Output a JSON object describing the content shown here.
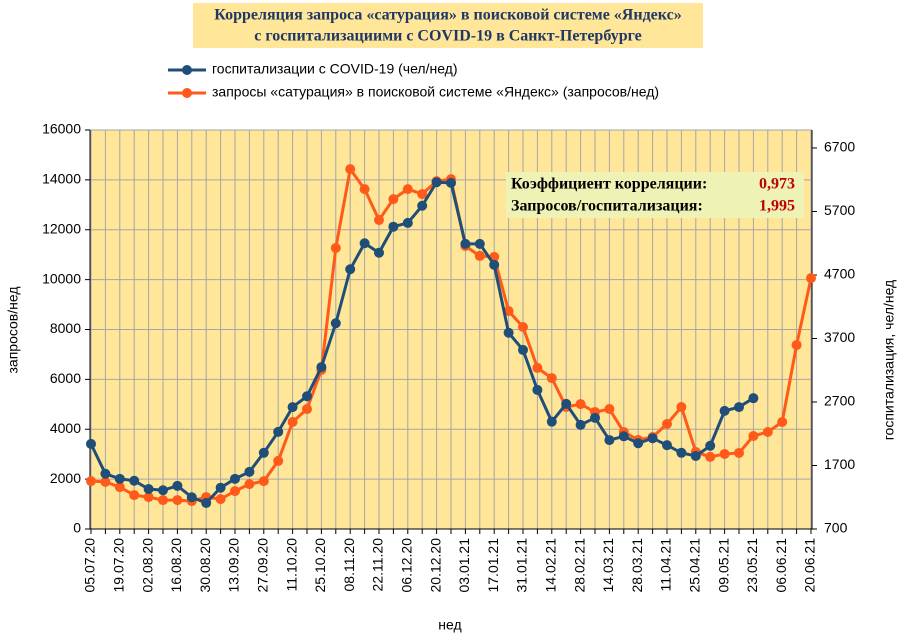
{
  "chart_data": {
    "type": "line",
    "title": [
      "Корреляция запроса «сатурация» в поисковой системе «Яндекс»",
      "с госпитализациими с COVID-19 в Санкт-Петербурге"
    ],
    "x_label": "нед",
    "y_label": "запросов/нед",
    "y2_label": "госпитализация, чел/нед",
    "categories": [
      "05.07.20",
      null,
      "19.07.20",
      null,
      "02.08.20",
      null,
      "16.08.20",
      null,
      "30.08.20",
      null,
      "13.09.20",
      null,
      "27.09.20",
      null,
      "11.10.20",
      null,
      "25.10.20",
      null,
      "08.11.20",
      null,
      "22.11.20",
      null,
      "06.12.20",
      null,
      "20.12.20",
      null,
      "03.01.21",
      null,
      "17.01.21",
      null,
      "31.01.21",
      null,
      "14.02.21",
      null,
      "28.02.21",
      null,
      "14.03.21",
      null,
      "28.03.21",
      null,
      "11.04.21",
      null,
      "25.04.21",
      null,
      "09.05.21",
      null,
      "23.05.21",
      null,
      "06.06.21",
      null,
      "20.06.21"
    ],
    "series": [
      {
        "name": "госпитализации с COVID-19 (чел/нед)",
        "color": "#1f4e79",
        "axis": "y2",
        "values": [
          2040,
          1570,
          1490,
          1460,
          1330,
          1310,
          1380,
          1200,
          1110,
          1350,
          1490,
          1600,
          1900,
          2230,
          2620,
          2790,
          3250,
          3940,
          4790,
          5200,
          5050,
          5460,
          5520,
          5790,
          6160,
          6150,
          5190,
          5190,
          4860,
          3790,
          3520,
          2890,
          2390,
          2670,
          2340,
          2450,
          2100,
          2160,
          2050,
          2130,
          2020,
          1900,
          1850,
          2010,
          2560,
          2620,
          2760,
          null,
          null,
          null,
          null
        ]
      },
      {
        "name": "запросы «сатурация» в поисковой системе «Яндекс» (запросов/нед)",
        "color": "#ff5a1a",
        "values": [
          1920,
          1890,
          1680,
          1360,
          1280,
          1160,
          1160,
          1120,
          1280,
          1200,
          1520,
          1800,
          1920,
          2730,
          4290,
          4810,
          6380,
          11270,
          14430,
          13630,
          12390,
          13230,
          13630,
          13430,
          13950,
          14030,
          11350,
          10950,
          10910,
          8740,
          8100,
          6460,
          6050,
          4890,
          5010,
          4690,
          4810,
          3890,
          3570,
          3690,
          4210,
          4890,
          3090,
          2890,
          3010,
          3050,
          3730,
          3890,
          4290,
          7380,
          10060
        ]
      }
    ],
    "ylim": [
      0,
      16000
    ],
    "yticks": [
      0,
      2000,
      4000,
      6000,
      8000,
      10000,
      12000,
      14000,
      16000
    ],
    "y2lim": [
      700,
      6983
    ],
    "y2ticks": [
      700,
      1700,
      2700,
      3700,
      4700,
      5700,
      6700
    ],
    "grid": true,
    "background": "#ffe699",
    "annotations": [
      {
        "label": "Коэффициент корреляции:",
        "value": "0,973"
      },
      {
        "label": "Запросов/госпитализация:",
        "value": "1,995"
      }
    ]
  }
}
